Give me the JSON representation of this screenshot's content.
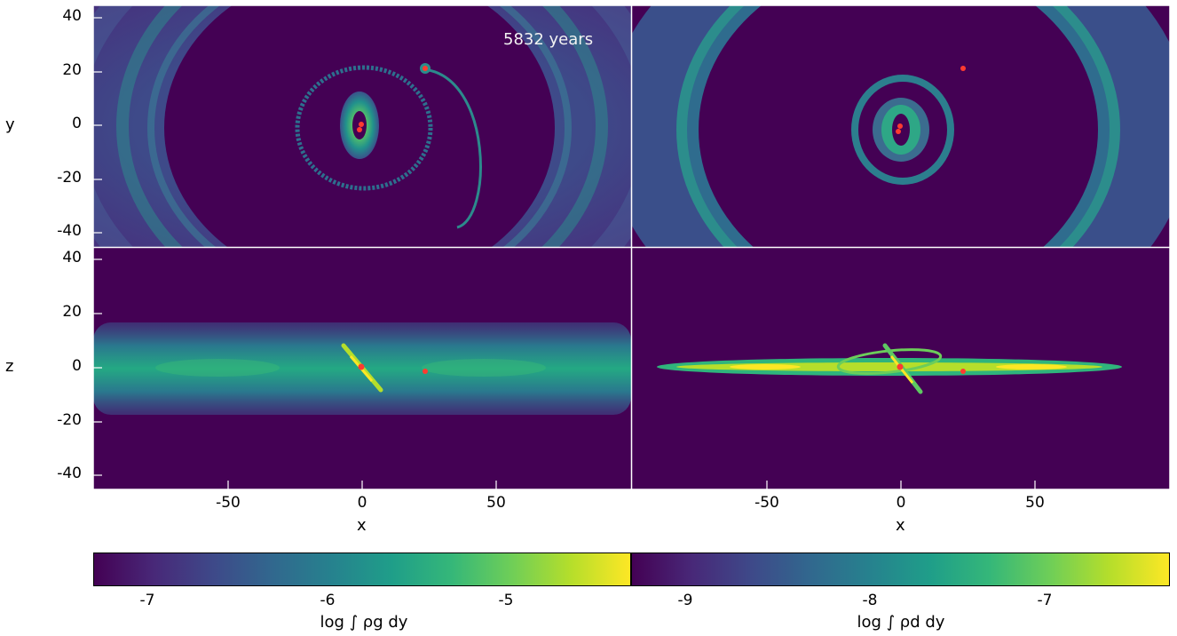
{
  "time_label": "5832 years",
  "axes": {
    "ylabel_top": "y",
    "ylabel_bottom": "z",
    "xlabel_left": "x",
    "xlabel_right": "x",
    "yticks": [
      "40",
      "20",
      "0",
      "-20",
      "-40"
    ],
    "xticks": [
      "-50",
      "0",
      "50"
    ]
  },
  "colorbars": {
    "gas": {
      "label": "log ∫ ρg dy",
      "ticks": [
        "-7",
        "-6",
        "-5"
      ]
    },
    "dust": {
      "label": "log ∫ ρd dy",
      "ticks": [
        "-9",
        "-8",
        "-7"
      ]
    }
  },
  "colors": {
    "background": "#440154",
    "marker": "#ff3b30",
    "axes": "#ffffff"
  },
  "panels": [
    {
      "name": "gas-face-on",
      "view": "x-y",
      "species": "gas"
    },
    {
      "name": "dust-face-on",
      "view": "x-y",
      "species": "dust"
    },
    {
      "name": "gas-edge-on",
      "view": "x-z",
      "species": "gas"
    },
    {
      "name": "dust-edge-on",
      "view": "x-z",
      "species": "dust"
    }
  ]
}
